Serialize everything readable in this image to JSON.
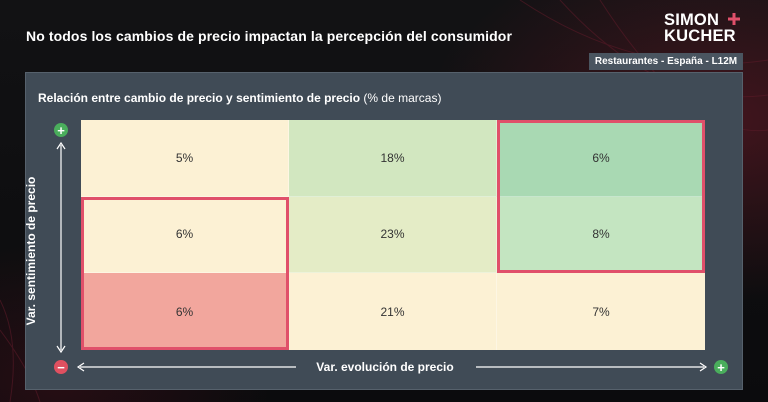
{
  "header": {
    "title": "No todos los cambios de precio impactan la percepción del consumidor",
    "logo_line1": "SIMON",
    "logo_line2": "KUCHER",
    "scope_badge": "Restaurantes - España - L12M"
  },
  "panel": {
    "title_bold": "Relación entre cambio de precio y sentimiento de precio",
    "title_regular": " (% de marcas)"
  },
  "colors": {
    "highlight_border": "#e0506a",
    "positive_icon": "#4aae5c",
    "negative_icon": "#e05060"
  },
  "icons": {
    "y_top": "plus-icon",
    "y_bottom": "minus-icon",
    "x_right": "plus-icon"
  },
  "chart_data": {
    "type": "heatmap",
    "title": "Relación entre cambio de precio y sentimiento de precio (% de marcas)",
    "xlabel": "Var. evolución de precio",
    "ylabel": "Var. sentimiento de precio",
    "rows": [
      {
        "cells": [
          {
            "label": "5%",
            "value": 5,
            "color": "#fcf1d4"
          },
          {
            "label": "18%",
            "value": 18,
            "color": "#d2e7c0"
          },
          {
            "label": "6%",
            "value": 6,
            "color": "#a9d9b3"
          }
        ]
      },
      {
        "cells": [
          {
            "label": "6%",
            "value": 6,
            "color": "#fcf1d4"
          },
          {
            "label": "23%",
            "value": 23,
            "color": "#e4ecc6"
          },
          {
            "label": "8%",
            "value": 8,
            "color": "#c4e5c1"
          }
        ]
      },
      {
        "cells": [
          {
            "label": "6%",
            "value": 6,
            "color": "#f2a69d"
          },
          {
            "label": "21%",
            "value": 21,
            "color": "#fcf1d4"
          },
          {
            "label": "7%",
            "value": 7,
            "color": "#fcf1d4"
          }
        ]
      }
    ],
    "highlights": [
      {
        "row_start": 0,
        "row_end": 1,
        "col_start": 2,
        "col_end": 2
      },
      {
        "row_start": 1,
        "row_end": 2,
        "col_start": 0,
        "col_end": 0
      }
    ]
  }
}
